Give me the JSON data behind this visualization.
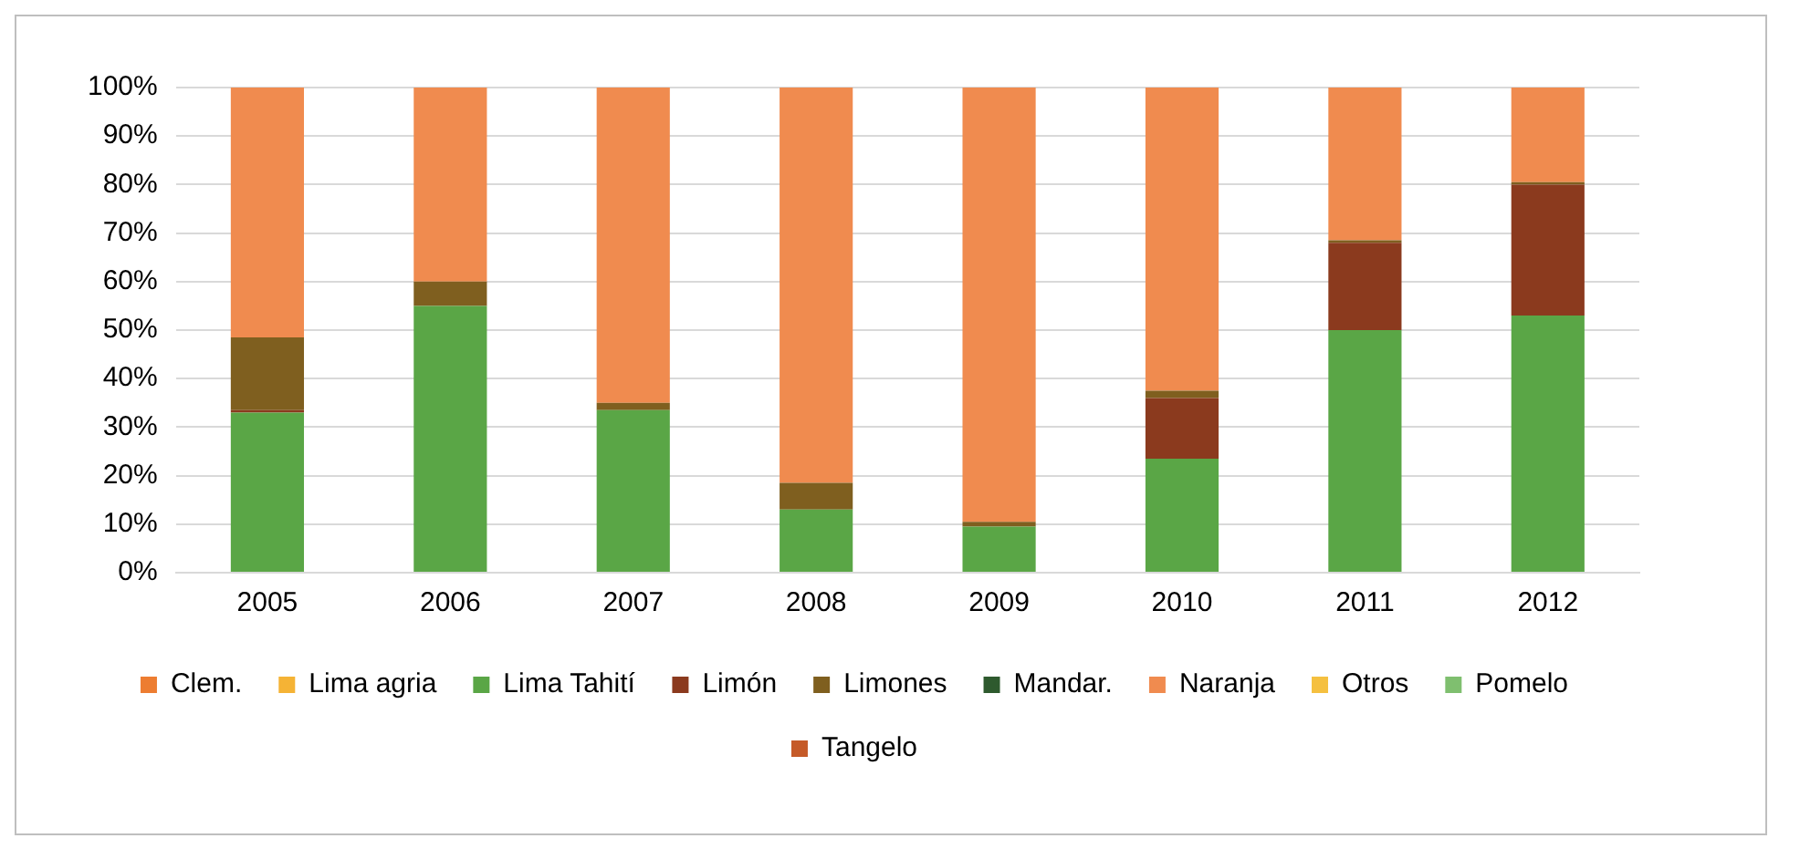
{
  "chart_data": {
    "type": "bar",
    "stacked": true,
    "categories": [
      "2005",
      "2006",
      "2007",
      "2008",
      "2009",
      "2010",
      "2011",
      "2012"
    ],
    "series": [
      {
        "name": "Clem.",
        "color": "#ed7d31",
        "values": [
          0,
          0,
          0,
          0,
          0,
          0,
          0,
          0
        ]
      },
      {
        "name": "Lima agria",
        "color": "#f5b335",
        "values": [
          0,
          0,
          0,
          0,
          0,
          0,
          0,
          0
        ]
      },
      {
        "name": "Lima Tahití",
        "color": "#5aa646",
        "values": [
          33,
          55,
          33.5,
          13,
          9.5,
          23.5,
          50,
          53
        ]
      },
      {
        "name": "Limón",
        "color": "#8b3a1e",
        "values": [
          0.5,
          0,
          0,
          0,
          0,
          12.5,
          18,
          27
        ]
      },
      {
        "name": "Limones",
        "color": "#7f5f1f",
        "values": [
          15,
          5,
          1.5,
          5.5,
          1,
          1.5,
          0.5,
          0.5
        ]
      },
      {
        "name": "Mandar.",
        "color": "#2e5a2e",
        "values": [
          0,
          0,
          0,
          0,
          0,
          0,
          0,
          0
        ]
      },
      {
        "name": "Naranja",
        "color": "#f08b4f",
        "values": [
          51.5,
          40,
          65,
          81.5,
          89.5,
          62.5,
          31.5,
          19.5
        ]
      },
      {
        "name": "Otros",
        "color": "#f5c040",
        "values": [
          0,
          0,
          0,
          0,
          0,
          0,
          0,
          0
        ]
      },
      {
        "name": "Pomelo",
        "color": "#7fbf6f",
        "values": [
          0,
          0,
          0,
          0,
          0,
          0,
          0,
          0
        ]
      },
      {
        "name": "Tangelo",
        "color": "#c55a28",
        "values": [
          0,
          0,
          0,
          0,
          0,
          0,
          0,
          0
        ]
      }
    ],
    "ylim": [
      0,
      100
    ],
    "yticks": [
      {
        "value": 0,
        "label": "0%"
      },
      {
        "value": 10,
        "label": "10%"
      },
      {
        "value": 20,
        "label": "20%"
      },
      {
        "value": 30,
        "label": "30%"
      },
      {
        "value": 40,
        "label": "40%"
      },
      {
        "value": 50,
        "label": "50%"
      },
      {
        "value": 60,
        "label": "60%"
      },
      {
        "value": 70,
        "label": "70%"
      },
      {
        "value": 80,
        "label": "80%"
      },
      {
        "value": 90,
        "label": "90%"
      },
      {
        "value": 100,
        "label": "100%"
      }
    ],
    "grid": "y",
    "legend": "bottom"
  }
}
